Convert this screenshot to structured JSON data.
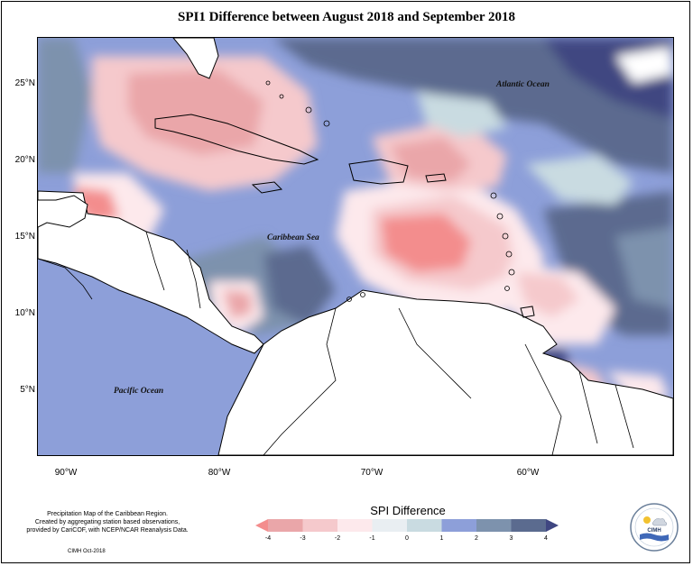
{
  "title": "SPI1 Difference between August 2018 and September 2018",
  "map": {
    "latitude_labels": [
      "25°N",
      "20°N",
      "15°N",
      "10°N",
      "5°N"
    ],
    "longitude_labels": [
      "90°W",
      "80°W",
      "70°W",
      "60°W"
    ],
    "region_labels": {
      "atlantic": "Atlantic Ocean",
      "caribbean": "Caribbean Sea",
      "pacific": "Pacific Ocean"
    }
  },
  "legend": {
    "title": "SPI Difference",
    "ticks": [
      "-4",
      "-3",
      "-2",
      "-1",
      "0",
      "1",
      "2",
      "3",
      "4"
    ],
    "colors": [
      "#f38d8d",
      "#eaa6a9",
      "#f5c9cc",
      "#fde9ec",
      "#e9eef2",
      "#c9dbe1",
      "#8d9fd9",
      "#7d92ad",
      "#5b6b8f",
      "#3f4681"
    ]
  },
  "footnote": {
    "line1": "Precipitation Map of the Caribbean Region.",
    "line2": "Created by aggregating station based observations,",
    "line3": "provided by CariCOF, with NCEP/NCAR Reanalysis Data."
  },
  "credit": "CIMH Oct-2018",
  "logo": {
    "text": "CIMH",
    "icon": "cimh-logo-icon"
  }
}
